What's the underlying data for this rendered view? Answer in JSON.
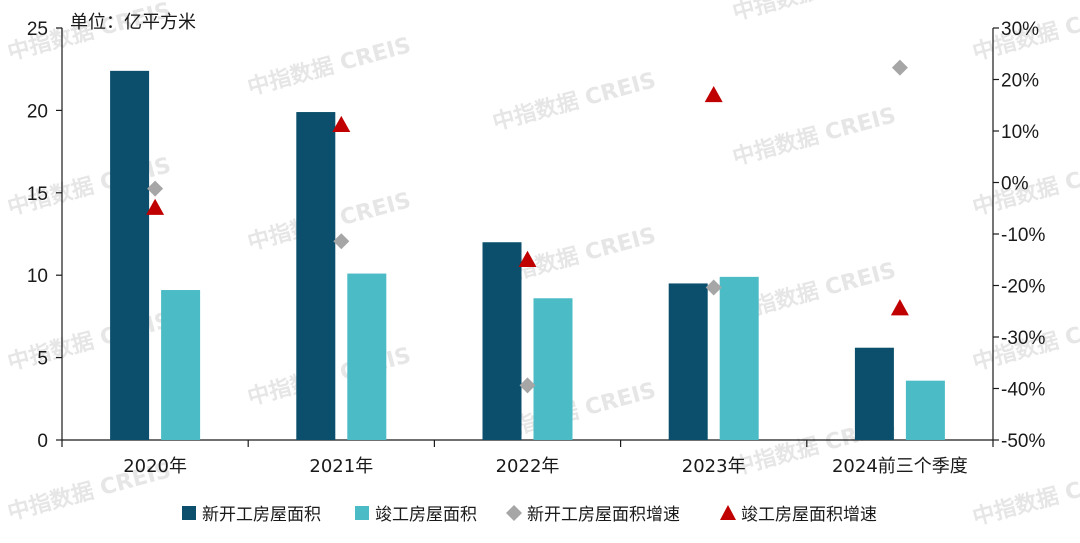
{
  "chart_data": {
    "type": "bar",
    "unit_label": "单位：亿平方米",
    "categories": [
      "2020年",
      "2021年",
      "2022年",
      "2023年",
      "2024前三个季度"
    ],
    "series": [
      {
        "name": "新开工房屋面积",
        "kind": "bar",
        "axis": "left",
        "color": "#0b4f6c",
        "values": [
          22.4,
          19.9,
          12.0,
          9.5,
          5.6
        ]
      },
      {
        "name": "竣工房屋面积",
        "kind": "bar",
        "axis": "left",
        "color": "#4bbcc6",
        "values": [
          9.1,
          10.1,
          8.6,
          9.9,
          3.6
        ]
      },
      {
        "name": "新开工房屋面积增速",
        "kind": "diamond",
        "axis": "right",
        "color": "#a6a6a6",
        "values": [
          -1.2,
          -11.4,
          -39.4,
          -20.4,
          22.3
        ]
      },
      {
        "name": "竣工房屋面积增速",
        "kind": "triangle",
        "axis": "right",
        "color": "#c00000",
        "values": [
          -4.9,
          11.2,
          -15.0,
          17.0,
          -24.4
        ]
      }
    ],
    "y_left": {
      "min": 0,
      "max": 25,
      "ticks": [
        "0",
        "5",
        "10",
        "15",
        "20",
        "25"
      ]
    },
    "y_right": {
      "min": -50,
      "max": 30,
      "ticks": [
        "-50%",
        "-40%",
        "-30%",
        "-20%",
        "-10%",
        "0%",
        "10%",
        "20%",
        "30%"
      ]
    },
    "legend_position": "bottom",
    "watermark": "中指数据 CREIS"
  }
}
